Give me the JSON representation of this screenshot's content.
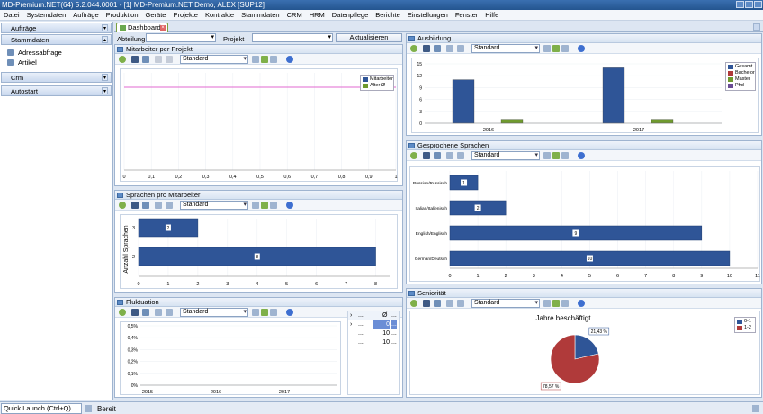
{
  "window": {
    "title": "MD-Premium.NET(64) 5.2.044.0001 - [1] MD-Premium.NET Demo, ALEX [SUP12]"
  },
  "menu": [
    "Datei",
    "Systemdaten",
    "Aufträge",
    "Produktion",
    "Geräte",
    "Projekte",
    "Kontrakte",
    "Stammdaten",
    "CRM",
    "HRM",
    "Datenpflege",
    "Berichte",
    "Einstellungen",
    "Fenster",
    "Hilfe"
  ],
  "sidebar": {
    "groups": [
      {
        "label": "Aufträge"
      },
      {
        "label": "Stammdaten",
        "items": [
          "Adressabfrage",
          "Artikel"
        ]
      },
      {
        "label": "Crm"
      },
      {
        "label": "Autostart"
      }
    ]
  },
  "tab": {
    "label": "Dashboard"
  },
  "filter": {
    "abteilung_label": "Abteilung",
    "projekt_label": "Projekt",
    "refresh_label": "Aktualisieren"
  },
  "toolbar": {
    "preset": "Standard"
  },
  "panels": {
    "mitarbeiter": {
      "title": "Mitarbeiter per Projekt"
    },
    "sprachen_ma": {
      "title": "Sprachen pro Mitarbeiter"
    },
    "fluktuation": {
      "title": "Fluktuation"
    },
    "ausbildung": {
      "title": "Ausbildung"
    },
    "gesprochen": {
      "title": "Gesprochene Sprachen"
    },
    "senioritaet": {
      "title": "Seniorität"
    }
  },
  "fluktuation_grid": {
    "header": "Ø",
    "rows": [
      {
        "value": "0",
        "selected": true
      },
      {
        "value": "10"
      },
      {
        "value": "10"
      }
    ]
  },
  "status": {
    "quick_launch": "Quick Launch (Ctrl+Q)",
    "state": "Bereit"
  },
  "colors": {
    "blue": "#2f5597",
    "red": "#b03a3a",
    "green": "#6f9a2e",
    "purple": "#6a4c93",
    "pink": "#e06ad0"
  },
  "chart_data": [
    {
      "type": "line",
      "title": "",
      "x_ticks": [
        "0",
        "0,1",
        "0,2",
        "0,3",
        "0,4",
        "0,5",
        "0,6",
        "0,7",
        "0,8",
        "0,9",
        "1"
      ],
      "series": [
        {
          "name": "Mitarbeiter",
          "values": []
        },
        {
          "name": "Alter Ø",
          "values": []
        }
      ],
      "legend": "top-right"
    },
    {
      "type": "bar",
      "orientation": "horizontal",
      "ylabel": "Anzahl Sprachen",
      "categories": [
        "3",
        "2"
      ],
      "values": [
        2,
        8
      ],
      "data_labels": [
        "2",
        "8"
      ],
      "x_ticks": [
        "0",
        "1",
        "2",
        "3",
        "4",
        "5",
        "6",
        "7",
        "8"
      ],
      "xlim": [
        0,
        8.5
      ]
    },
    {
      "type": "line",
      "y_ticks": [
        "0,5%",
        "0,4%",
        "0,3%",
        "0,2%",
        "0,1%",
        "0%"
      ],
      "x_ticks": [
        "2015",
        "2016",
        "2017"
      ],
      "series": []
    },
    {
      "type": "bar",
      "categories": [
        "2016",
        "2017"
      ],
      "series": [
        {
          "name": "Gesamt",
          "values": [
            11,
            14
          ]
        },
        {
          "name": "Bachelor",
          "values": [
            0,
            0
          ]
        },
        {
          "name": "Master",
          "values": [
            1,
            1
          ]
        },
        {
          "name": "Phd",
          "values": [
            0,
            0
          ]
        }
      ],
      "y_ticks": [
        "0",
        "3",
        "6",
        "9",
        "12",
        "15"
      ],
      "ylim": [
        0,
        15
      ],
      "legend": "top-right"
    },
    {
      "type": "bar",
      "orientation": "horizontal",
      "categories": [
        "Russian/Russisch",
        "Italian/Italienisch",
        "English/Englisch",
        "German/Deutsch"
      ],
      "values": [
        1,
        2,
        9,
        10
      ],
      "data_labels": [
        "1",
        "2",
        "9",
        "10"
      ],
      "x_ticks": [
        "0",
        "1",
        "2",
        "3",
        "4",
        "5",
        "6",
        "7",
        "8",
        "9",
        "10",
        "11"
      ],
      "xlim": [
        0,
        11
      ]
    },
    {
      "type": "pie",
      "title": "Jahre beschäftigt",
      "labels": [
        "0-1",
        "1-2"
      ],
      "values": [
        21.43,
        78.57
      ],
      "data_labels": [
        "21,43 %",
        "78,57 %"
      ],
      "legend": "top-right"
    }
  ]
}
